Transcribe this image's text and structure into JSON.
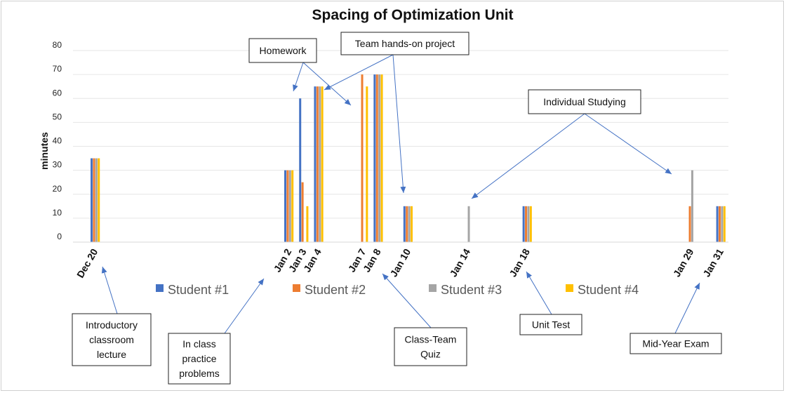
{
  "chart_data": {
    "type": "bar",
    "title": "Spacing of Optimization Unit",
    "ylabel": "minutes",
    "xlabel": "",
    "ylim": [
      0,
      80
    ],
    "yticks": [
      0,
      10,
      20,
      30,
      40,
      50,
      60,
      70,
      80
    ],
    "x_domain": [
      "Dec 19",
      "Jan 31"
    ],
    "categories": [
      "Dec 20",
      "Jan 2",
      "Jan 3",
      "Jan 4",
      "Jan 7",
      "Jan 8",
      "Jan 10",
      "Jan 14",
      "Jan 18",
      "Jan 29",
      "Jan 31"
    ],
    "series": [
      {
        "name": "Student #1",
        "color": "#4472C4",
        "values": [
          35,
          30,
          60,
          65,
          0,
          70,
          15,
          0,
          15,
          0,
          15
        ]
      },
      {
        "name": "Student #2",
        "color": "#ED7D31",
        "values": [
          35,
          30,
          25,
          65,
          70,
          70,
          15,
          0,
          15,
          15,
          15
        ]
      },
      {
        "name": "Student #3",
        "color": "#A5A5A5",
        "values": [
          35,
          30,
          0,
          65,
          0,
          70,
          15,
          15,
          15,
          30,
          15
        ]
      },
      {
        "name": "Student #4",
        "color": "#FFC000",
        "values": [
          35,
          30,
          15,
          65,
          65,
          70,
          15,
          0,
          15,
          0,
          15
        ]
      }
    ],
    "grid": true,
    "legend": "bottom",
    "annotations": [
      {
        "lines": [
          "Homework"
        ],
        "targets": [
          "Jan 3",
          "Jan 7"
        ]
      },
      {
        "lines": [
          "Team hands-on project"
        ],
        "targets": [
          "Jan 4",
          "Jan 10"
        ]
      },
      {
        "lines": [
          "Individual Studying"
        ],
        "targets": [
          "Jan 14",
          "Jan 29"
        ]
      },
      {
        "lines": [
          "Introductory",
          "classroom",
          "lecture"
        ],
        "targets": [
          "Dec 20"
        ]
      },
      {
        "lines": [
          "In class",
          "practice",
          "problems"
        ],
        "targets": [
          "Jan 2"
        ]
      },
      {
        "lines": [
          "Class-Team",
          "Quiz"
        ],
        "targets": [
          "Jan 8"
        ]
      },
      {
        "lines": [
          "Unit Test"
        ],
        "targets": [
          "Jan 18"
        ]
      },
      {
        "lines": [
          "Mid-Year Exam"
        ],
        "targets": [
          "Jan 31"
        ]
      }
    ]
  }
}
